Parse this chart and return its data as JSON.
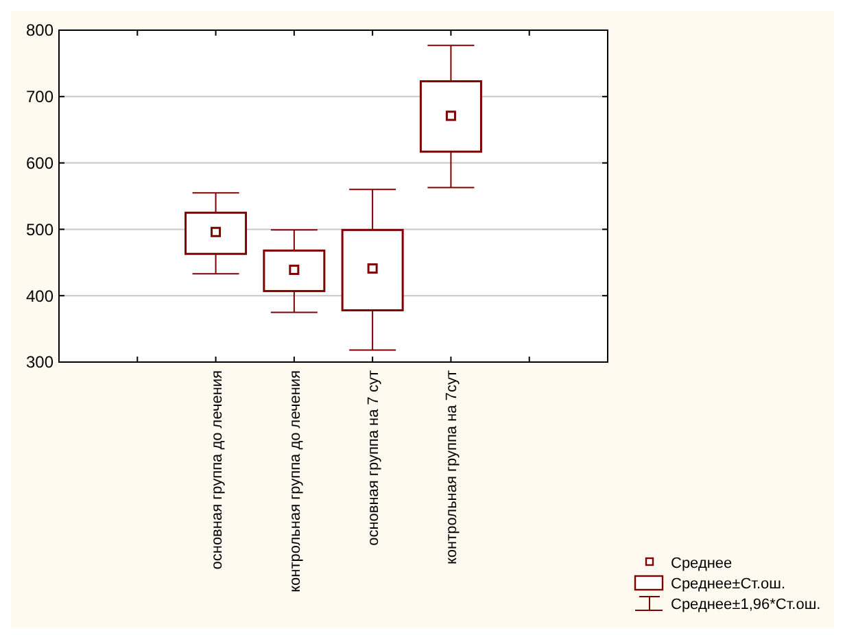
{
  "chart_data": {
    "type": "box",
    "categories": [
      null,
      "основная группа до лечения",
      "контрольная группа до лечения",
      "основная группа на 7 сут",
      "контрольная группа на 7сут",
      null
    ],
    "boxes": [
      null,
      {
        "low": 433,
        "q1": 463,
        "median": 496,
        "q3": 525,
        "high": 555
      },
      {
        "low": 375,
        "q1": 407,
        "median": 439,
        "q3": 468,
        "high": 499
      },
      {
        "low": 318,
        "q1": 378,
        "median": 441,
        "q3": 499,
        "high": 560
      },
      {
        "low": 563,
        "q1": 617,
        "median": 671,
        "q3": 723,
        "high": 777
      },
      null
    ],
    "color": "#800000",
    "ylim": [
      300,
      800
    ],
    "yticks": [
      300,
      400,
      500,
      600,
      700,
      800
    ],
    "grid": "y",
    "marker": "square",
    "annotations": [
      "Среднее",
      "Среднее±Ст.ош.",
      "Среднее±1,96*Ст.ош."
    ]
  }
}
